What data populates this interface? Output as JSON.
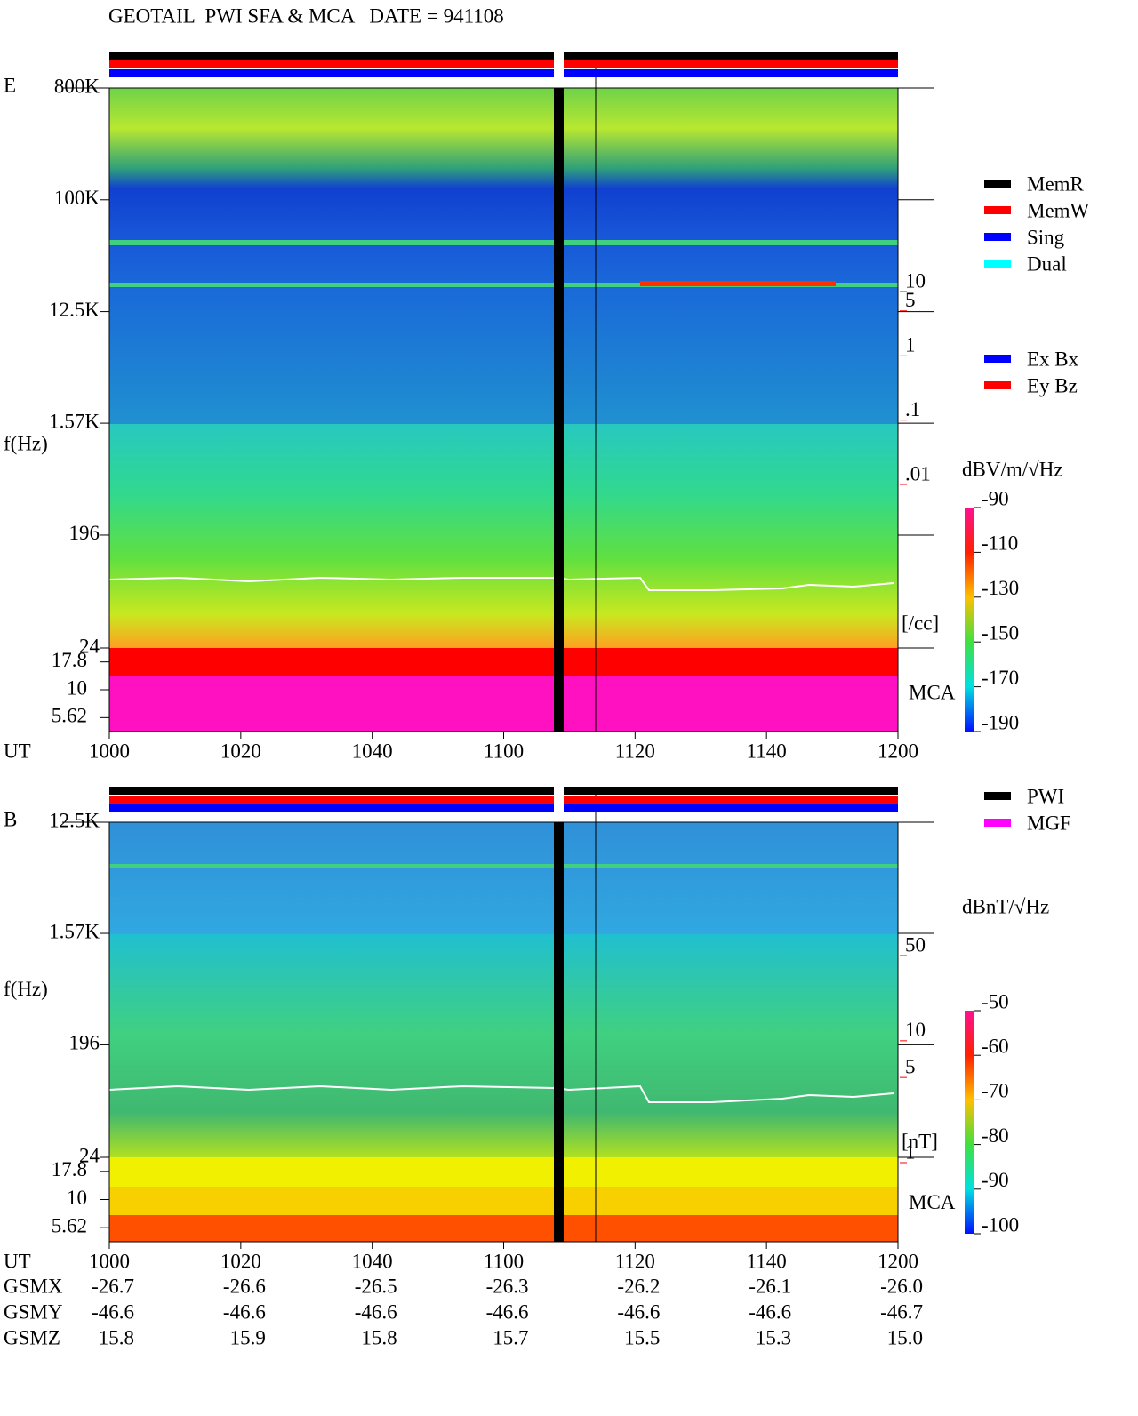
{
  "chart_data": [
    {
      "type": "spectrogram",
      "title": "GEOTAIL  PWI SFA & MCA   DATE = 941108",
      "panel_label": "E",
      "y_label": "f(Hz)",
      "x_label": "UT",
      "log_y": true,
      "ylim": [
        24,
        800000
      ],
      "yticks": [
        {
          "value": 800000,
          "label": "800K"
        },
        {
          "value": 100000,
          "label": "100K"
        },
        {
          "value": 12500,
          "label": "12.5K"
        },
        {
          "value": 1570,
          "label": "1.57K"
        },
        196,
        24
      ],
      "mca_label": "MCA",
      "mca_ticks": [
        17.8,
        10,
        5.62
      ],
      "categories": [
        "1000",
        "1020",
        "1040",
        "1100",
        "1120",
        "1140",
        "1200"
      ],
      "legend": [
        {
          "name": "MemR",
          "color": "#000000"
        },
        {
          "name": "MemW",
          "color": "#ff0000"
        },
        {
          "name": "Sing",
          "color": "#0000ff"
        },
        {
          "name": "Dual",
          "color": "#00ffff"
        }
      ],
      "legend2": [
        {
          "name": "Ex Bx",
          "color": "#0000ff"
        },
        {
          "name": "Ey Bz",
          "color": "#ff0000"
        }
      ],
      "colorbar": {
        "label": "dBV/m/√Hz",
        "lim": [
          -190,
          -90
        ],
        "ticks": [
          -90,
          -110,
          -130,
          -150,
          -170,
          -190
        ]
      },
      "density_scale": {
        "label": "[/cc]",
        "color": "#ff0000",
        "log": true,
        "lim": [
          0.01,
          10
        ],
        "ticks": [
          10,
          5,
          1,
          {
            "value": 0.1,
            "label": ".1"
          },
          {
            "value": 0.01,
            "label": ".01"
          }
        ]
      }
    },
    {
      "type": "spectrogram",
      "panel_label": "B",
      "y_label": "f(Hz)",
      "x_label": "UT",
      "log_y": true,
      "ylim": [
        24,
        12500
      ],
      "yticks": [
        {
          "value": 12500,
          "label": "12.5K"
        },
        {
          "value": 1570,
          "label": "1.57K"
        },
        196,
        24
      ],
      "mca_label": "MCA",
      "mca_ticks": [
        17.8,
        10,
        5.62
      ],
      "categories": [
        "1000",
        "1020",
        "1040",
        "1100",
        "1120",
        "1140",
        "1200"
      ],
      "legend": [
        {
          "name": "PWI",
          "color": "#000000"
        },
        {
          "name": "MGF",
          "color": "#ff00ff"
        }
      ],
      "colorbar": {
        "label": "dBnT/√Hz",
        "lim": [
          -100,
          -50
        ],
        "ticks": [
          -50,
          -60,
          -70,
          -80,
          -90,
          -100
        ]
      },
      "density_scale": {
        "label": "[nT]",
        "color": "#ff0000",
        "log": true,
        "lim": [
          1,
          50
        ],
        "ticks": [
          50,
          10,
          5,
          1
        ]
      }
    }
  ],
  "orbit": {
    "rows": [
      {
        "name": "GSMX",
        "values": [
          "-26.7",
          "-26.6",
          "-26.5",
          "-26.3",
          "-26.2",
          "-26.1",
          "-26.0"
        ]
      },
      {
        "name": "GSMY",
        "values": [
          "-46.6",
          "-46.6",
          "-46.6",
          "-46.6",
          "-46.6",
          "-46.6",
          "-46.7"
        ]
      },
      {
        "name": "GSMZ",
        "values": [
          "15.8",
          "15.9",
          "15.8",
          "15.7",
          "15.5",
          "15.3",
          "15.0"
        ]
      }
    ]
  }
}
